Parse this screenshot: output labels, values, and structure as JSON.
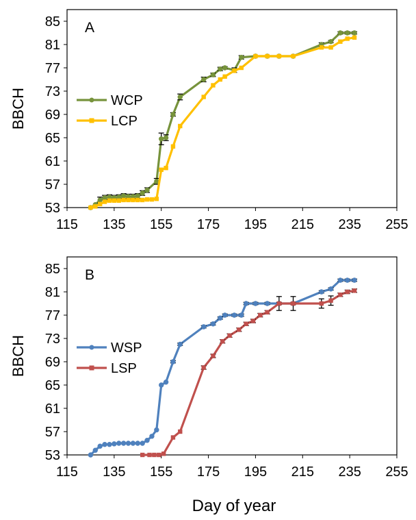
{
  "chart_data": [
    {
      "type": "line",
      "panel_label": "A",
      "ylabel": "BBCH",
      "xlabel": "",
      "xlim": [
        115,
        255
      ],
      "ylim": [
        53,
        87
      ],
      "xticks": [
        115,
        135,
        155,
        175,
        195,
        215,
        235,
        255
      ],
      "yticks": [
        53,
        57,
        61,
        65,
        69,
        73,
        77,
        81,
        85
      ],
      "grid": false,
      "legend_position": "middle-left",
      "series": [
        {
          "name": "WCP",
          "color": "#77933C",
          "marker": "circle",
          "x": [
            125,
            127,
            129,
            131,
            133,
            135,
            137,
            139,
            141,
            143,
            145,
            147,
            149,
            153,
            155,
            157,
            160,
            163,
            173,
            177,
            180,
            182,
            186,
            189,
            195,
            200,
            205,
            211,
            223,
            227,
            231,
            234,
            237
          ],
          "y": [
            53,
            53.5,
            54.3,
            54.7,
            54.8,
            54.7,
            54.8,
            55,
            54.9,
            54.9,
            55,
            55.5,
            56,
            57.5,
            64.8,
            65,
            69,
            72,
            75,
            75.8,
            76.8,
            77,
            76.6,
            78.8,
            79,
            79,
            79,
            79,
            81,
            81.5,
            83,
            83,
            83
          ],
          "err": [
            0,
            0,
            0.5,
            0.4,
            0.4,
            0.4,
            0.4,
            0.4,
            0.4,
            0.4,
            0.4,
            0.4,
            0.4,
            0.5,
            1,
            0.5,
            0.3,
            0.5,
            0.4,
            0.3,
            0.3,
            0.2,
            0.4,
            0.3,
            0,
            0,
            0,
            0,
            0.3,
            0.2,
            0.2,
            0.2,
            0.2
          ]
        },
        {
          "name": "LCP",
          "color": "#FFC000",
          "marker": "square",
          "x": [
            125,
            127,
            129,
            131,
            133,
            135,
            137,
            139,
            141,
            143,
            145,
            147,
            149,
            151,
            153,
            155,
            157,
            160,
            163,
            173,
            177,
            180,
            182,
            186,
            189,
            195,
            200,
            205,
            211,
            223,
            227,
            231,
            234,
            237
          ],
          "y": [
            53,
            53.2,
            53.6,
            54,
            54.2,
            54.2,
            54.2,
            54.3,
            54.3,
            54.3,
            54.3,
            54.3,
            54.4,
            54.4,
            54.5,
            59.5,
            59.8,
            63.5,
            67,
            72,
            74,
            75,
            75.5,
            76.5,
            77,
            79,
            79,
            79,
            79,
            80.5,
            80.5,
            81.5,
            82,
            82.2
          ]
        }
      ]
    },
    {
      "type": "line",
      "panel_label": "B",
      "ylabel": "BBCH",
      "xlabel": "Day of year",
      "xlim": [
        115,
        255
      ],
      "ylim": [
        53,
        87
      ],
      "xticks": [
        115,
        135,
        155,
        175,
        195,
        215,
        235,
        255
      ],
      "yticks": [
        53,
        57,
        61,
        65,
        69,
        73,
        77,
        81,
        85
      ],
      "grid": false,
      "legend_position": "middle-left",
      "series": [
        {
          "name": "WSP",
          "color": "#4F81BD",
          "marker": "circle",
          "x": [
            125,
            127,
            129,
            131,
            133,
            135,
            137,
            139,
            141,
            143,
            145,
            147,
            149,
            151,
            153,
            155,
            157,
            160,
            163,
            173,
            177,
            180,
            182,
            186,
            189,
            191,
            195,
            200,
            205,
            211,
            223,
            227,
            231,
            234,
            237
          ],
          "y": [
            53,
            53.8,
            54.5,
            54.8,
            54.8,
            54.9,
            55,
            55,
            55,
            55,
            55,
            55,
            55.5,
            56.2,
            57.3,
            65,
            65.5,
            69,
            72,
            75,
            75.5,
            76.5,
            77,
            77,
            77,
            79,
            79,
            79,
            79,
            79,
            81,
            81.5,
            83,
            83,
            83
          ],
          "err": [
            0,
            0,
            0,
            0,
            0,
            0,
            0,
            0,
            0,
            0,
            0,
            0,
            0,
            0,
            0,
            0,
            0,
            0.2,
            0.2,
            0.2,
            0.2,
            0.2,
            0.2,
            0.2,
            0.2,
            0.2,
            0.2,
            0.2,
            0.2,
            0.2,
            0.2,
            0.2,
            0.2,
            0.2,
            0.2
          ]
        },
        {
          "name": "LSP",
          "color": "#C0504D",
          "marker": "square",
          "x": [
            147,
            150,
            152,
            154,
            156,
            160,
            163,
            173,
            177,
            181,
            184,
            188,
            191,
            194,
            197,
            200,
            205,
            211,
            223,
            227,
            231,
            234,
            237
          ],
          "y": [
            53,
            53,
            53,
            53,
            53.2,
            56,
            57,
            68,
            70,
            72.5,
            73.5,
            74.5,
            75.5,
            76,
            77,
            77.5,
            79,
            79,
            79,
            79.5,
            80.5,
            81,
            81.2
          ],
          "err": [
            0,
            0,
            0,
            0,
            0,
            0,
            0,
            0.3,
            0.3,
            0.3,
            0.3,
            0.3,
            0.3,
            0.3,
            0.3,
            0.3,
            1.2,
            1.2,
            0.8,
            0.8,
            0.3,
            0.3,
            0.3
          ]
        }
      ]
    }
  ]
}
